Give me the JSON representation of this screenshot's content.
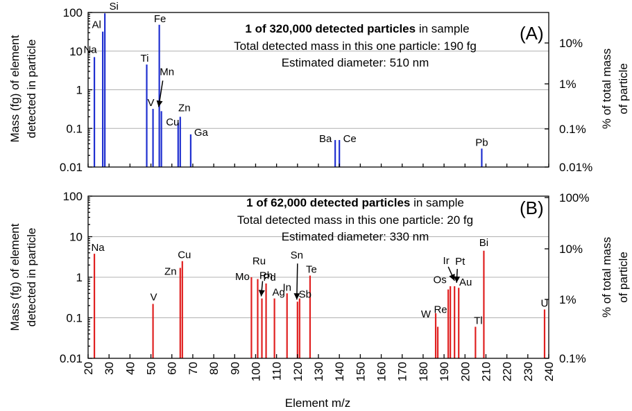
{
  "chart_data": [
    {
      "type": "bar",
      "panel_label": "(A)",
      "color": "#1f2fd0",
      "info": [
        {
          "bold": "1 of 320,000 detected particles",
          "rest": " in sample"
        },
        {
          "bold": "",
          "rest": "Total detected mass in this one particle: 190 fg"
        },
        {
          "bold": "",
          "rest": "Estimated diameter: 510 nm"
        }
      ],
      "ylabel": [
        "Mass (fg) of element",
        "detected in particle"
      ],
      "y2label": [
        "% of total mass",
        "of particle"
      ],
      "ylim": [
        0.01,
        100
      ],
      "yscale": "log",
      "y_ticks": [
        "0.01",
        "0.1",
        "1",
        "10",
        "100"
      ],
      "y2_ticks": [
        "0.01%",
        "0.1%",
        "1%",
        "10%"
      ],
      "points": [
        {
          "el": "Na",
          "mz": 23,
          "value": 7
        },
        {
          "el": "Al",
          "mz": 27,
          "value": 32
        },
        {
          "el": "Si",
          "mz": 28,
          "value": 95
        },
        {
          "el": "Ti",
          "mz": 48,
          "value": 4.5
        },
        {
          "el": "V",
          "mz": 51,
          "value": 0.32
        },
        {
          "el": "Fe",
          "mz": 54,
          "value": 48
        },
        {
          "el": "Mn",
          "mz": 55,
          "value": 0.28
        },
        {
          "el": "Cu",
          "mz": 63,
          "value": 0.14
        },
        {
          "el": "Zn",
          "mz": 64,
          "value": 0.2
        },
        {
          "el": "Ga",
          "mz": 69,
          "value": 0.07
        },
        {
          "el": "Ba",
          "mz": 138,
          "value": 0.05
        },
        {
          "el": "Ce",
          "mz": 140,
          "value": 0.05
        },
        {
          "el": "Pb",
          "mz": 208,
          "value": 0.03
        }
      ]
    },
    {
      "type": "bar",
      "panel_label": "(B)",
      "color": "#e02020",
      "info": [
        {
          "bold": "1 of 62,000 detected particles",
          "rest": " in sample"
        },
        {
          "bold": "",
          "rest": "Total detected mass in this one particle: 20 fg"
        },
        {
          "bold": "",
          "rest": "Estimated diameter: 330 nm"
        }
      ],
      "ylabel": [
        "Mass (fg) of element",
        "detected in particle"
      ],
      "y2label": [
        "% of total mass",
        "of particle"
      ],
      "ylim": [
        0.01,
        100
      ],
      "yscale": "log",
      "y_ticks": [
        "0.01",
        "0.1",
        "1",
        "10",
        "100"
      ],
      "y2_ticks": [
        "0.1%",
        "1%",
        "10%",
        "100%"
      ],
      "xlabel": "Element m/z",
      "xlim": [
        20,
        240
      ],
      "x_ticks": [
        "20",
        "30",
        "40",
        "50",
        "60",
        "70",
        "80",
        "90",
        "100",
        "110",
        "120",
        "130",
        "140",
        "150",
        "160",
        "170",
        "180",
        "190",
        "200",
        "210",
        "220",
        "230",
        "240"
      ],
      "points": [
        {
          "el": "Na",
          "mz": 23,
          "value": 3.8
        },
        {
          "el": "V",
          "mz": 51,
          "value": 0.22
        },
        {
          "el": "Zn",
          "mz": 64,
          "value": 1.7
        },
        {
          "el": "Cu",
          "mz": 65,
          "value": 2.5
        },
        {
          "el": "Mo",
          "mz": 98,
          "value": 1.0
        },
        {
          "el": "Ru",
          "mz": 101,
          "value": 0.9
        },
        {
          "el": "Rh",
          "mz": 103,
          "value": 0.3
        },
        {
          "el": "Pd",
          "mz": 105,
          "value": 0.7
        },
        {
          "el": "Ag",
          "mz": 109,
          "value": 0.3
        },
        {
          "el": "In",
          "mz": 115,
          "value": 0.4
        },
        {
          "el": "Sn",
          "mz": 120,
          "value": 0.25
        },
        {
          "el": "Sb",
          "mz": 121,
          "value": 0.3
        },
        {
          "el": "Te",
          "mz": 126,
          "value": 1.1
        },
        {
          "el": "W",
          "mz": 186,
          "value": 0.13
        },
        {
          "el": "Re",
          "mz": 187,
          "value": 0.06
        },
        {
          "el": "Os",
          "mz": 192,
          "value": 0.5
        },
        {
          "el": "Ir",
          "mz": 193,
          "value": 0.6
        },
        {
          "el": "Pt",
          "mz": 195,
          "value": 0.6
        },
        {
          "el": "Au",
          "mz": 197,
          "value": 0.55
        },
        {
          "el": "Tl",
          "mz": 205,
          "value": 0.06
        },
        {
          "el": "Bi",
          "mz": 209,
          "value": 4.5
        },
        {
          "el": "U",
          "mz": 238,
          "value": 0.16
        }
      ]
    }
  ]
}
